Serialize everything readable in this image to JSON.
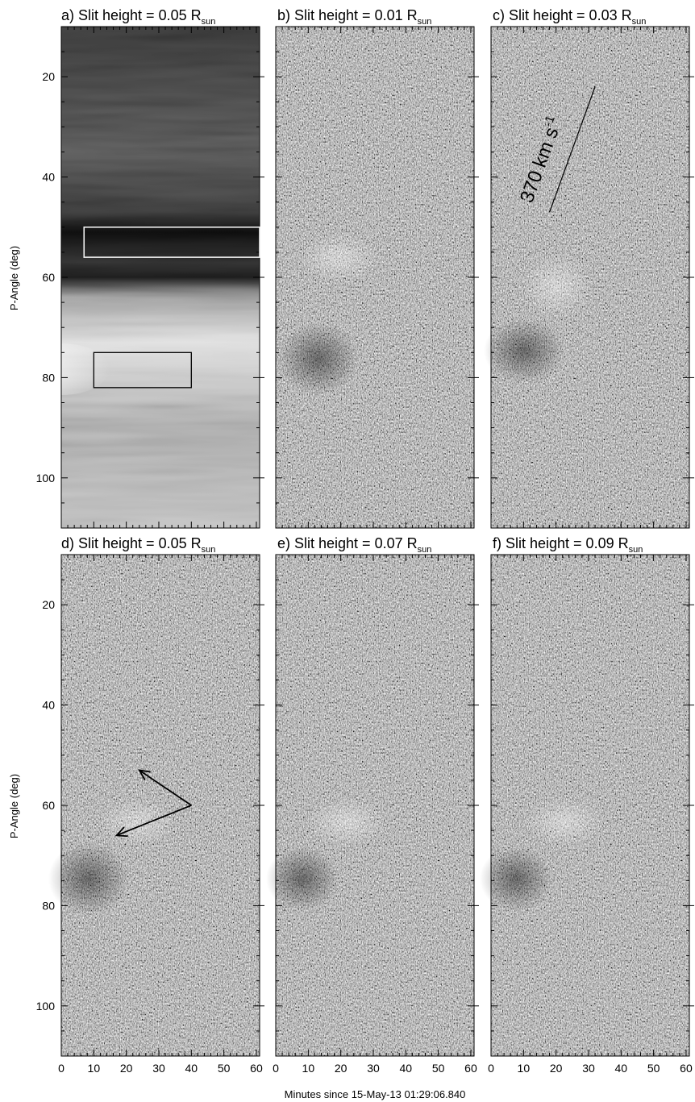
{
  "figure": {
    "x_axis_label": "Minutes since 15-May-13 01:29:06.840",
    "y_axis_label": "P-Angle (deg)",
    "x_ticks": [
      0,
      10,
      20,
      30,
      40,
      50,
      60
    ],
    "y_ticks": [
      20,
      40,
      60,
      80,
      100
    ],
    "x_range": [
      0,
      61
    ],
    "y_range": [
      10,
      110
    ],
    "y_inverted": true
  },
  "panels": [
    {
      "id": "a",
      "label": "a) Slit height = 0.05 R",
      "subscript": "sun",
      "style": "intensity"
    },
    {
      "id": "b",
      "label": "b) Slit height = 0.01 R",
      "subscript": "sun",
      "style": "difference"
    },
    {
      "id": "c",
      "label": "c) Slit height = 0.03 R",
      "subscript": "sun",
      "style": "difference"
    },
    {
      "id": "d",
      "label": "d) Slit height = 0.05 R",
      "subscript": "sun",
      "style": "difference"
    },
    {
      "id": "e",
      "label": "e) Slit height = 0.07 R",
      "subscript": "sun",
      "style": "difference"
    },
    {
      "id": "f",
      "label": "f) Slit height = 0.09 R",
      "subscript": "sun",
      "style": "difference"
    }
  ],
  "annotations": {
    "speed_label": "370 km s",
    "speed_exponent": "-1",
    "speed_line": {
      "panel": "c",
      "x0": 18,
      "y0": 47,
      "x1": 32,
      "y1": 22
    },
    "box_white": {
      "panel": "a",
      "x0": 7,
      "x1": 61,
      "y0": 50,
      "y1": 56
    },
    "box_black": {
      "panel": "a",
      "x0": 10,
      "x1": 40,
      "y0": 75,
      "y1": 82
    },
    "arrows": {
      "panel": "d",
      "origin": [
        40,
        60
      ],
      "tips": [
        [
          24,
          53
        ],
        [
          17,
          66
        ]
      ]
    }
  },
  "colors": {
    "background": "#ffffff",
    "ink": "#000000",
    "box_white": "#f0f0f0",
    "noise_mid": "#808080"
  }
}
